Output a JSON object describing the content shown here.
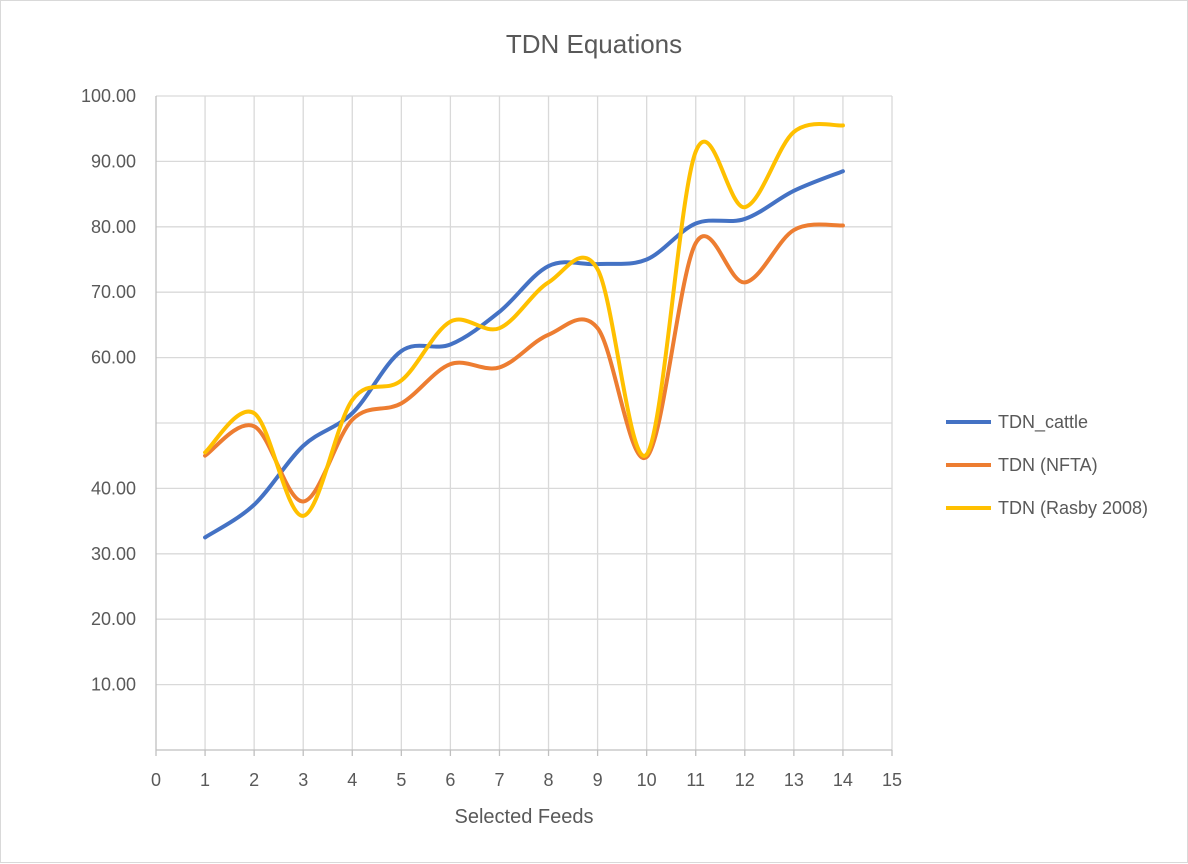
{
  "chart_data": {
    "type": "line",
    "smooth": true,
    "title": "TDN Equations",
    "xlabel": "Selected Feeds",
    "ylabel": "",
    "xlim": [
      0,
      15
    ],
    "ylim": [
      0,
      100
    ],
    "x_ticks": [
      "0",
      "1",
      "2",
      "3",
      "4",
      "5",
      "6",
      "7",
      "8",
      "9",
      "10",
      "11",
      "12",
      "13",
      "14",
      "15"
    ],
    "y_ticks": [
      {
        "value": 10,
        "label": "10.00"
      },
      {
        "value": 20,
        "label": "20.00"
      },
      {
        "value": 30,
        "label": "30.00"
      },
      {
        "value": 40,
        "label": "40.00"
      },
      {
        "value": 50,
        "label": ""
      },
      {
        "value": 60,
        "label": "60.00"
      },
      {
        "value": 70,
        "label": "70.00"
      },
      {
        "value": 80,
        "label": "80.00"
      },
      {
        "value": 90,
        "label": "90.00"
      },
      {
        "value": 100,
        "label": "100.00"
      }
    ],
    "grid": true,
    "legend_position": "right",
    "x": [
      1,
      2,
      3,
      4,
      5,
      6,
      7,
      8,
      9,
      10,
      11,
      12,
      13,
      14
    ],
    "series": [
      {
        "name": "TDN_cattle",
        "color": "#4472c4",
        "values": [
          32.5,
          37.5,
          46.5,
          51.5,
          61.0,
          62.0,
          67.0,
          74.0,
          74.3,
          75.0,
          80.5,
          81.2,
          85.5,
          88.5
        ]
      },
      {
        "name": "TDN (NFTA)",
        "color": "#ed7d31",
        "values": [
          45.0,
          49.5,
          38.0,
          50.5,
          53.0,
          59.0,
          58.5,
          63.5,
          64.5,
          44.8,
          77.5,
          71.5,
          79.5,
          80.2
        ]
      },
      {
        "name": "TDN (Rasby 2008)",
        "color": "#ffc000",
        "values": [
          45.5,
          51.5,
          35.8,
          53.5,
          56.5,
          65.5,
          64.5,
          71.5,
          73.5,
          45.2,
          91.5,
          83.0,
          94.5,
          95.5
        ]
      }
    ]
  }
}
